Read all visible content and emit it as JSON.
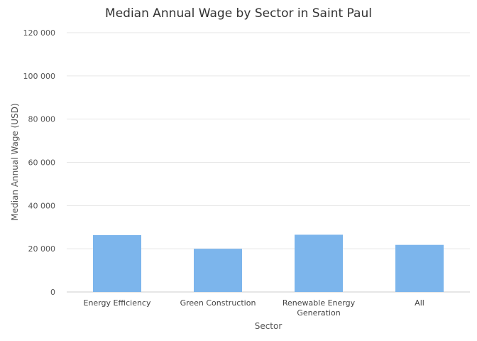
{
  "chart_data": {
    "type": "bar",
    "title": "Median Annual Wage by Sector in Saint Paul",
    "xlabel": "Sector",
    "ylabel": "Median Annual Wage (USD)",
    "categories": [
      [
        "Energy Efficiency"
      ],
      [
        "Green Construction"
      ],
      [
        "Renewable Energy",
        "Generation"
      ],
      [
        "All"
      ]
    ],
    "values": [
      26300,
      20000,
      26500,
      21800
    ],
    "ylim": [
      0,
      120000
    ],
    "yticks": [
      0,
      20000,
      40000,
      60000,
      80000,
      100000,
      120000
    ],
    "ytick_labels": [
      "0",
      "20 000",
      "40 000",
      "60 000",
      "80 000",
      "100 000",
      "120 000"
    ],
    "grid": true,
    "legend": "none",
    "bar_color": "#7cb5ec",
    "grid_color": "#e6e6e6"
  }
}
